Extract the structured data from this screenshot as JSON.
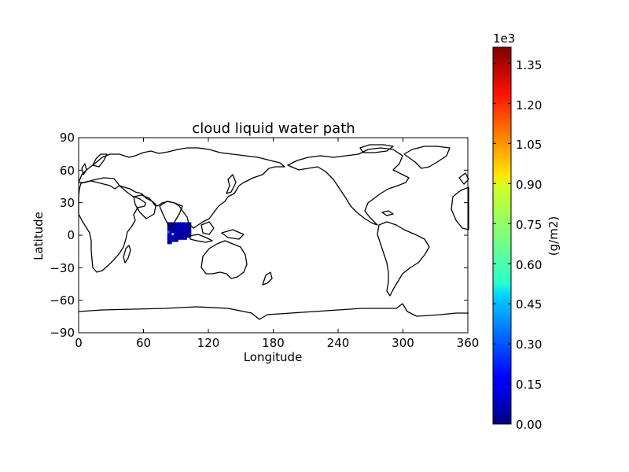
{
  "chart_data": {
    "type": "heatmap",
    "title": "cloud liquid water path",
    "xlabel": "Longitude",
    "ylabel": "Latitude",
    "xlim": [
      0,
      360
    ],
    "ylim": [
      -90,
      90
    ],
    "x_ticks": [
      "0",
      "60",
      "120",
      "180",
      "240",
      "300",
      "360"
    ],
    "y_ticks": [
      "90",
      "60",
      "30",
      "0",
      "−30",
      "−60",
      "−90"
    ],
    "x_tick_values": [
      0,
      60,
      120,
      180,
      240,
      300,
      360
    ],
    "y_tick_values": [
      90,
      60,
      30,
      0,
      -30,
      -60,
      -90
    ],
    "colorbar": {
      "label": "(g/m2)",
      "multiplier": "1e3",
      "min": 0.0,
      "max": 1.41,
      "ticks": [
        "0.00",
        "0.15",
        "0.30",
        "0.45",
        "0.60",
        "0.75",
        "0.90",
        "1.05",
        "1.20",
        "1.35"
      ],
      "tick_values": [
        0.0,
        0.15,
        0.3,
        0.45,
        0.6,
        0.75,
        0.9,
        1.05,
        1.2,
        1.35
      ],
      "colormap": "jet"
    },
    "data_region": {
      "lon_range": [
        82,
        104
      ],
      "lat_range": [
        -10,
        12
      ],
      "cell_size_deg": 2,
      "cells": [
        [
          82,
          10,
          0.02
        ],
        [
          84,
          10,
          0.03
        ],
        [
          86,
          10,
          0.05
        ],
        [
          88,
          10,
          0.04
        ],
        [
          90,
          10,
          0.06
        ],
        [
          92,
          10,
          0.05
        ],
        [
          94,
          10,
          0.08
        ],
        [
          96,
          10,
          0.05
        ],
        [
          98,
          10,
          0.22
        ],
        [
          100,
          10,
          0.04
        ],
        [
          102,
          10,
          0.06
        ],
        [
          82,
          8,
          0.04
        ],
        [
          84,
          8,
          0.05
        ],
        [
          86,
          8,
          0.03
        ],
        [
          88,
          8,
          0.07
        ],
        [
          90,
          8,
          0.05
        ],
        [
          92,
          8,
          0.04
        ],
        [
          94,
          8,
          0.06
        ],
        [
          96,
          8,
          0.09
        ],
        [
          98,
          8,
          0.05
        ],
        [
          100,
          8,
          0.03
        ],
        [
          102,
          8,
          0.05
        ],
        [
          82,
          6,
          0.03
        ],
        [
          84,
          6,
          0.06
        ],
        [
          86,
          6,
          0.05
        ],
        [
          88,
          6,
          0.04
        ],
        [
          90,
          6,
          0.1
        ],
        [
          92,
          6,
          0.06
        ],
        [
          94,
          6,
          0.05
        ],
        [
          96,
          6,
          0.07
        ],
        [
          98,
          6,
          0.04
        ],
        [
          100,
          6,
          0.06
        ],
        [
          102,
          6,
          0.03
        ],
        [
          82,
          4,
          0.05
        ],
        [
          84,
          4,
          0.04
        ],
        [
          86,
          4,
          0.07
        ],
        [
          88,
          4,
          0.05
        ],
        [
          90,
          4,
          0.06
        ],
        [
          92,
          4,
          0.15
        ],
        [
          94,
          4,
          0.06
        ],
        [
          96,
          4,
          0.04
        ],
        [
          98,
          4,
          0.08
        ],
        [
          100,
          4,
          0.05
        ],
        [
          102,
          4,
          0.04
        ],
        [
          82,
          2,
          0.35
        ],
        [
          84,
          2,
          0.06
        ],
        [
          86,
          2,
          0.05
        ],
        [
          88,
          2,
          0.04
        ],
        [
          90,
          2,
          0.06
        ],
        [
          92,
          2,
          0.05
        ],
        [
          94,
          2,
          0.07
        ],
        [
          96,
          2,
          0.05
        ],
        [
          98,
          2,
          0.06
        ],
        [
          100,
          2,
          0.04
        ],
        [
          102,
          2,
          0.05
        ],
        [
          82,
          0,
          0.04
        ],
        [
          84,
          0,
          0.05
        ],
        [
          86,
          0,
          0.62
        ],
        [
          88,
          0,
          0.05
        ],
        [
          90,
          0,
          0.04
        ],
        [
          92,
          0,
          0.06
        ],
        [
          94,
          0,
          0.05
        ],
        [
          96,
          0,
          0.04
        ],
        [
          98,
          0,
          0.07
        ],
        [
          100,
          0,
          0.05
        ],
        [
          102,
          0,
          0.04
        ],
        [
          82,
          -2,
          0.06
        ],
        [
          84,
          -2,
          0.04
        ],
        [
          86,
          -2,
          0.18
        ],
        [
          88,
          -2,
          0.05
        ],
        [
          90,
          -2,
          0.06
        ],
        [
          92,
          -2,
          0.05
        ],
        [
          94,
          -2,
          0.04
        ],
        [
          96,
          -2,
          0.06
        ],
        [
          98,
          -2,
          0.05
        ],
        [
          100,
          -2,
          0.07
        ],
        [
          102,
          -2,
          0.05
        ],
        [
          82,
          -4,
          0.05
        ],
        [
          84,
          -4,
          0.07
        ],
        [
          86,
          -4,
          0.04
        ],
        [
          88,
          -4,
          0.06
        ],
        [
          90,
          -4,
          0.05
        ],
        [
          92,
          -4,
          0.04
        ],
        [
          94,
          -4,
          0.05
        ],
        [
          96,
          -4,
          0.06
        ],
        [
          98,
          -4,
          0.04
        ],
        [
          82,
          -6,
          0.04
        ],
        [
          84,
          -6,
          0.05
        ],
        [
          86,
          -6,
          0.06
        ],
        [
          88,
          -6,
          0.04
        ],
        [
          90,
          -6,
          0.05
        ],
        [
          82,
          -8,
          0.06
        ],
        [
          84,
          -8,
          0.04
        ]
      ]
    }
  },
  "colors": {
    "background": "#ffffff",
    "axis": "#000000",
    "coastline": "#000000"
  }
}
